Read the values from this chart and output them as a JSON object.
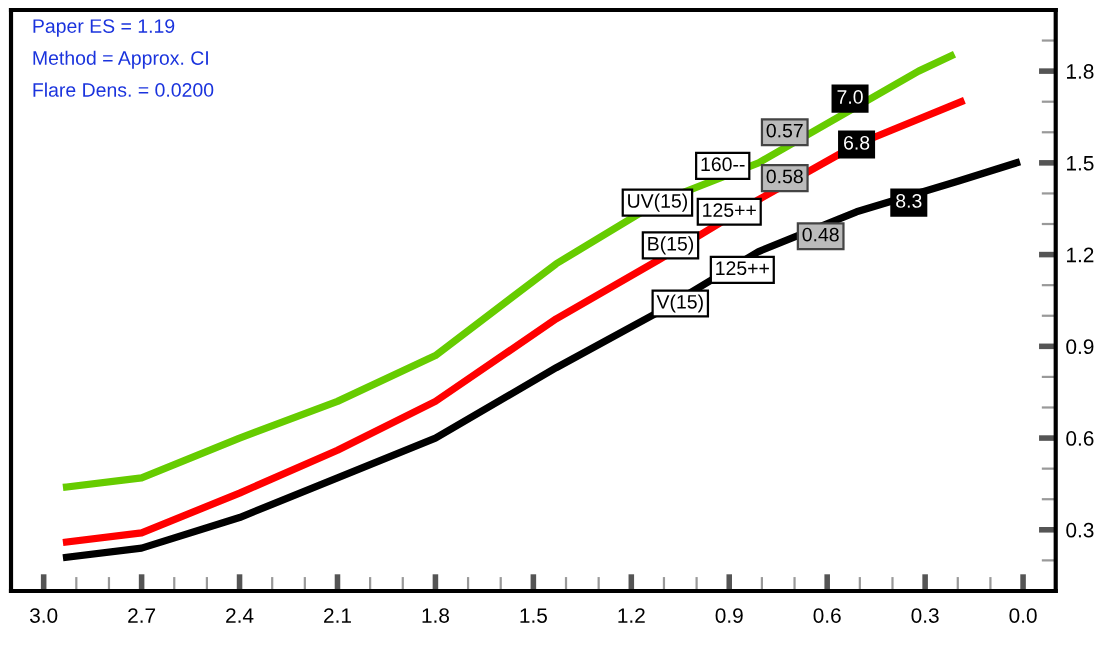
{
  "chart_data": {
    "type": "line",
    "series": [
      {
        "color": "#66cc00",
        "x": [
          2.93,
          2.7,
          2.4,
          2.1,
          1.8,
          1.43,
          1.12,
          0.81,
          0.32,
          0.22
        ],
        "values": [
          0.44,
          0.47,
          0.6,
          0.72,
          0.87,
          1.17,
          1.37,
          1.5,
          1.8,
          1.85
        ]
      },
      {
        "color": "#ff0000",
        "x": [
          2.93,
          2.7,
          2.4,
          2.1,
          1.8,
          1.43,
          1.12,
          0.81,
          0.51,
          0.19
        ],
        "values": [
          0.26,
          0.29,
          0.42,
          0.56,
          0.72,
          0.99,
          1.18,
          1.38,
          1.56,
          1.7
        ]
      },
      {
        "color": "#000000",
        "x": [
          2.93,
          2.7,
          2.4,
          2.1,
          1.8,
          1.43,
          1.12,
          0.81,
          0.51,
          0.2,
          0.02
        ],
        "values": [
          0.21,
          0.24,
          0.34,
          0.47,
          0.6,
          0.83,
          1.01,
          1.21,
          1.34,
          1.44,
          1.5
        ]
      }
    ],
    "xlim": [
      3.1,
      -0.1
    ],
    "xticks": [
      {
        "value": 3,
        "label": "3.0"
      },
      2.7,
      2.4,
      2.1,
      1.8,
      1.5,
      1.2,
      0.9,
      0.6,
      0.3,
      {
        "value": 0,
        "label": "0.0"
      }
    ],
    "ylim": [
      0.1,
      2.0
    ],
    "yticks": [
      0.3,
      0.6,
      0.9,
      1.2,
      1.5,
      1.8
    ],
    "grid": false,
    "legend": false,
    "marker": "none",
    "line_style": "solid",
    "annotations": [
      "Paper ES = 1.19",
      "Method = Approx. CI",
      "Flare Dens. = 0.0200",
      {
        "text": "UV(15)",
        "x": 1.12,
        "y": 1.37
      },
      {
        "text": "160--",
        "x": 0.92,
        "y": 1.49
      },
      {
        "text": "0.57",
        "x": 0.73,
        "y": 1.6
      },
      {
        "text": "7.0",
        "x": 0.53,
        "y": 1.71
      },
      {
        "text": "B(15)",
        "x": 1.08,
        "y": 1.23
      },
      {
        "text": "125++",
        "x": 0.9,
        "y": 1.34
      },
      {
        "text": "0.58",
        "x": 0.73,
        "y": 1.45
      },
      {
        "text": "6.8",
        "x": 0.51,
        "y": 1.56
      },
      {
        "text": "V(15)",
        "x": 1.05,
        "y": 1.04
      },
      {
        "text": "125++",
        "x": 0.86,
        "y": 1.15
      },
      {
        "text": "0.48",
        "x": 0.62,
        "y": 1.26
      },
      {
        "text": "8.3",
        "x": 0.35,
        "y": 1.37
      }
    ]
  }
}
